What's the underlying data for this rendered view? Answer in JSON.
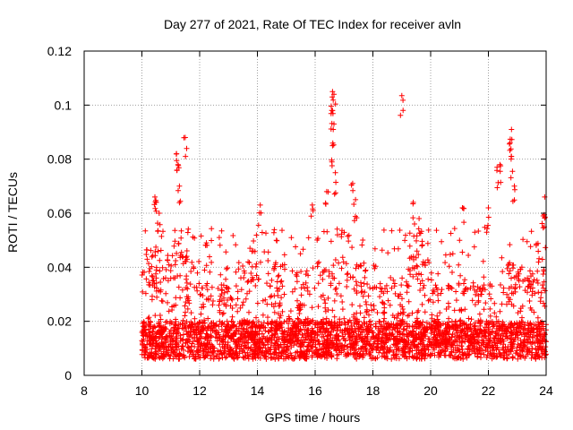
{
  "chart_data": {
    "type": "scatter",
    "title": "Day 277 of 2021, Rate Of TEC Index for receiver avln",
    "xlabel": "GPS time / hours",
    "ylabel": "ROTI / TECUs",
    "xlim": [
      8,
      24
    ],
    "ylim": [
      0,
      0.12
    ],
    "xticks": [
      "8",
      "10",
      "12",
      "14",
      "16",
      "18",
      "20",
      "22",
      "24"
    ],
    "yticks": [
      "0",
      "0.02",
      "0.04",
      "0.06",
      "0.08",
      "0.1",
      "0.12"
    ],
    "grid": true,
    "marker": "+",
    "color": "#ff0000",
    "series": [
      {
        "name": "ROTI",
        "x_range": [
          10.0,
          24.0
        ],
        "typical_band": [
          0.005,
          0.025
        ],
        "notable_points": [
          {
            "x": 10.45,
            "y": 0.066
          },
          {
            "x": 10.5,
            "y": 0.064
          },
          {
            "x": 10.6,
            "y": 0.06
          },
          {
            "x": 11.2,
            "y": 0.082
          },
          {
            "x": 11.25,
            "y": 0.078
          },
          {
            "x": 11.5,
            "y": 0.088
          },
          {
            "x": 11.3,
            "y": 0.07
          },
          {
            "x": 14.1,
            "y": 0.063
          },
          {
            "x": 15.9,
            "y": 0.063
          },
          {
            "x": 16.4,
            "y": 0.068
          },
          {
            "x": 16.6,
            "y": 0.105
          },
          {
            "x": 16.65,
            "y": 0.104
          },
          {
            "x": 16.6,
            "y": 0.098
          },
          {
            "x": 16.65,
            "y": 0.093
          },
          {
            "x": 16.6,
            "y": 0.085
          },
          {
            "x": 16.7,
            "y": 0.075
          },
          {
            "x": 17.3,
            "y": 0.071
          },
          {
            "x": 17.4,
            "y": 0.065
          },
          {
            "x": 19.0,
            "y": 0.1035
          },
          {
            "x": 19.4,
            "y": 0.064
          },
          {
            "x": 19.6,
            "y": 0.058
          },
          {
            "x": 21.1,
            "y": 0.062
          },
          {
            "x": 22.3,
            "y": 0.077
          },
          {
            "x": 22.4,
            "y": 0.078
          },
          {
            "x": 22.8,
            "y": 0.091
          },
          {
            "x": 22.75,
            "y": 0.086
          },
          {
            "x": 22.8,
            "y": 0.081
          },
          {
            "x": 22.9,
            "y": 0.07
          },
          {
            "x": 22.0,
            "y": 0.062
          },
          {
            "x": 23.95,
            "y": 0.066
          },
          {
            "x": 23.9,
            "y": 0.059
          }
        ]
      }
    ]
  }
}
